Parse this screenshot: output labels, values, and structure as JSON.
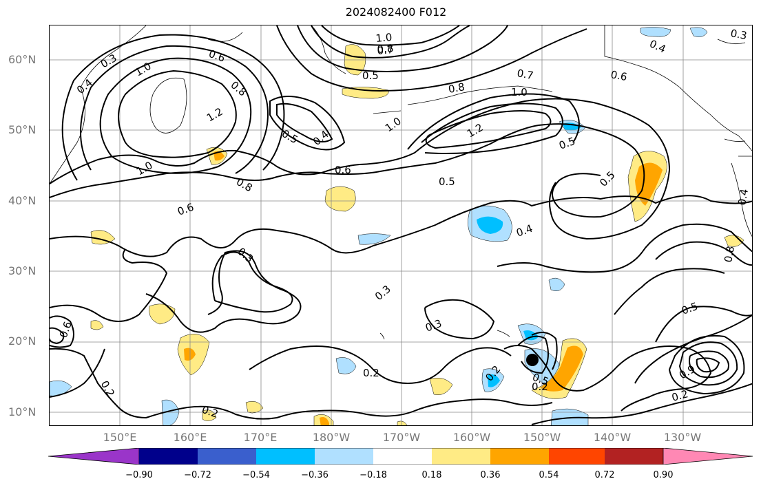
{
  "title": "2024082400 F012",
  "lat_labels": [
    "60°N",
    "50°N",
    "40°N",
    "30°N",
    "20°N",
    "10°N"
  ],
  "lon_labels": [
    "150°E",
    "160°E",
    "170°E",
    "180°W",
    "170°W",
    "160°W",
    "150°W",
    "140°W",
    "130°W"
  ],
  "colorbar": {
    "ticks": [
      "−0.90",
      "−0.72",
      "−0.54",
      "−0.36",
      "−0.18",
      "0.18",
      "0.36",
      "0.54",
      "0.72",
      "0.90"
    ],
    "colors": [
      "#9a35c9",
      "#00008b",
      "#3a5fcd",
      "#00bfff",
      "#b0e0ff",
      "#ffffff",
      "#ffeb85",
      "#ffa500",
      "#ff4500",
      "#b22222",
      "#ff88b4"
    ]
  },
  "contour_labels": [
    "0.3",
    "1.0",
    "0.4",
    "0.6",
    "0.8",
    "1.2",
    "0.5",
    "0.4",
    "1.0",
    "0.8",
    "0.7",
    "0.5",
    "0.8",
    "1.0",
    "0.7",
    "0.6",
    "1.0",
    "0.4",
    "0.3",
    "0.8",
    "1.0",
    "1.2",
    "0.5",
    "0.5",
    "0.6",
    "0.5",
    "0.4",
    "0.6",
    "0.8",
    "0.3",
    "0.3",
    "0.3",
    "0.2",
    "0.2",
    "0.2",
    "0.2",
    "0.5",
    "0.2",
    "0.9",
    "0.4",
    "0.6",
    "0.5",
    "0.2"
  ]
}
